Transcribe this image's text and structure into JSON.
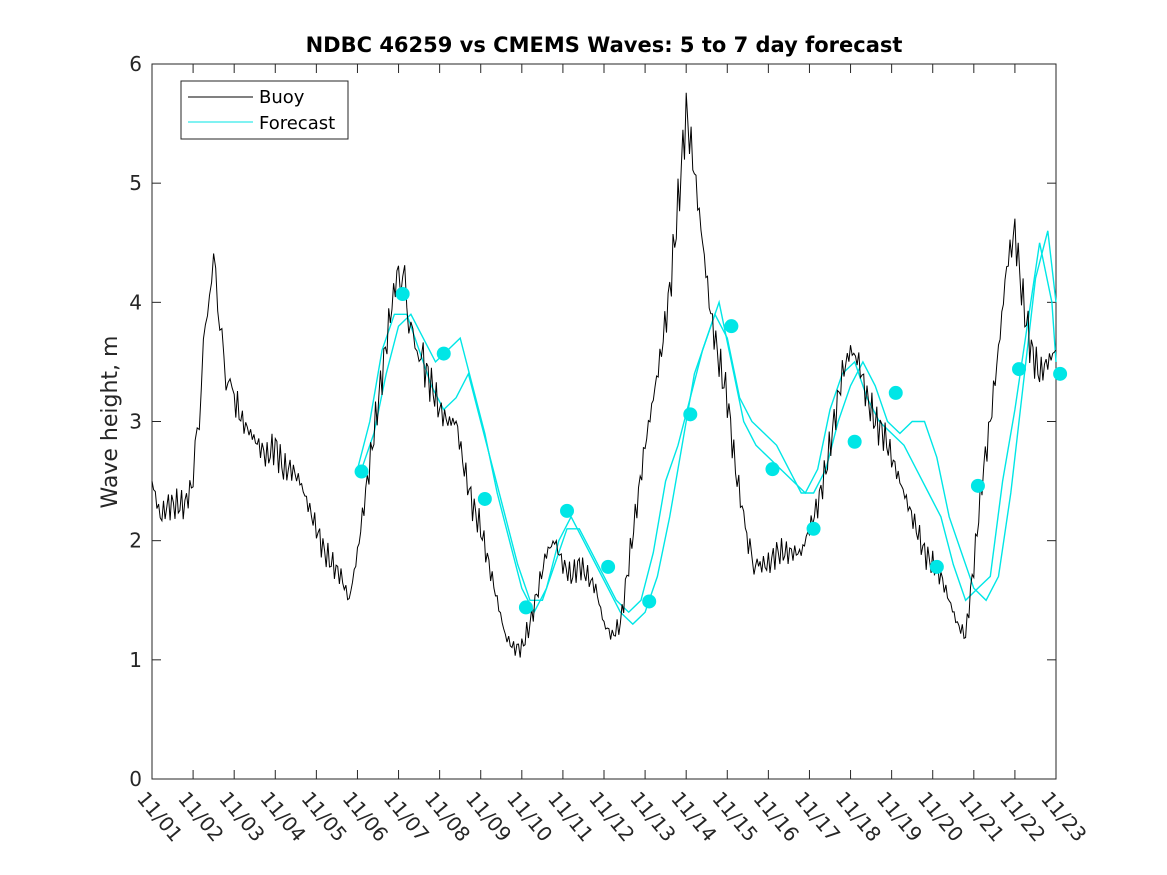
{
  "chart_data": {
    "type": "line",
    "title": "NDBC 46259 vs CMEMS Waves: 5 to 7 day forecast",
    "xlabel": "",
    "ylabel": "Wave height, m",
    "xlim": [
      0,
      22
    ],
    "ylim": [
      0,
      6
    ],
    "yticks": [
      0,
      1,
      2,
      3,
      4,
      5,
      6
    ],
    "xtick_labels": [
      "11/01",
      "11/02",
      "11/03",
      "11/04",
      "11/05",
      "11/06",
      "11/07",
      "11/08",
      "11/09",
      "11/10",
      "11/11",
      "11/12",
      "11/13",
      "11/14",
      "11/15",
      "11/16",
      "11/17",
      "11/18",
      "11/19",
      "11/20",
      "11/21",
      "11/22",
      "11/23"
    ],
    "legend": {
      "position": "top-left",
      "entries": [
        "Buoy",
        "Forecast"
      ]
    },
    "colors": {
      "buoy": "#000000",
      "forecast": "#00e6e6"
    },
    "buoy": {
      "name": "Buoy",
      "x": [
        0,
        0.2,
        0.4,
        0.6,
        0.8,
        1.0,
        1.1,
        1.2,
        1.3,
        1.4,
        1.5,
        1.6,
        1.7,
        1.8,
        1.9,
        2.0,
        2.2,
        2.4,
        2.6,
        2.8,
        3.0,
        3.2,
        3.4,
        3.6,
        3.8,
        4.0,
        4.2,
        4.4,
        4.6,
        4.8,
        5.0,
        5.2,
        5.4,
        5.6,
        5.8,
        6.0,
        6.1,
        6.2,
        6.3,
        6.4,
        6.5,
        6.6,
        6.8,
        7.0,
        7.2,
        7.4,
        7.6,
        7.8,
        8.0,
        8.2,
        8.4,
        8.6,
        8.8,
        9.0,
        9.2,
        9.4,
        9.6,
        9.8,
        10.0,
        10.2,
        10.4,
        10.6,
        10.8,
        11.0,
        11.2,
        11.4,
        11.6,
        11.8,
        12.0,
        12.2,
        12.4,
        12.6,
        12.8,
        13.0,
        13.2,
        13.4,
        13.6,
        13.8,
        14.0,
        14.2,
        14.4,
        14.55,
        14.65,
        14.8,
        15.0,
        15.2,
        15.4,
        15.6,
        15.8,
        16.0,
        16.2,
        16.4,
        16.6,
        16.8,
        17.0,
        17.2,
        17.4,
        17.6,
        17.8,
        18.0,
        18.2,
        18.4,
        18.6,
        18.8,
        19.0,
        19.2,
        19.4,
        19.6,
        19.8,
        20.0,
        20.2,
        20.4,
        20.6,
        20.8,
        21.0,
        21.2,
        21.4,
        21.6,
        21.8,
        22.0
      ],
      "y": [
        2.5,
        2.2,
        2.3,
        2.3,
        2.3,
        2.5,
        2.9,
        3.3,
        3.8,
        4.1,
        4.3,
        4.1,
        3.6,
        3.4,
        3.3,
        3.2,
        3.0,
        2.9,
        2.8,
        2.7,
        2.8,
        2.6,
        2.6,
        2.5,
        2.3,
        2.1,
        1.9,
        1.8,
        1.7,
        1.5,
        1.9,
        2.4,
        2.9,
        3.4,
        3.9,
        4.3,
        4.2,
        4.0,
        3.8,
        3.6,
        3.6,
        3.5,
        3.3,
        3.1,
        3.0,
        3.0,
        2.6,
        2.3,
        2.1,
        1.8,
        1.5,
        1.2,
        1.1,
        1.1,
        1.3,
        1.6,
        1.9,
        2.0,
        1.8,
        1.7,
        1.8,
        1.7,
        1.6,
        1.3,
        1.2,
        1.3,
        1.8,
        2.3,
        2.8,
        3.2,
        3.6,
        4.1,
        4.8,
        5.6,
        5.1,
        4.5,
        3.9,
        3.5,
        3.2,
        2.6,
        2.2,
        1.9,
        1.8,
        1.8,
        1.8,
        1.9,
        1.9,
        1.9,
        1.9,
        2.1,
        2.3,
        2.6,
        3.0,
        3.4,
        3.6,
        3.5,
        3.2,
        3.0,
        2.9,
        2.7,
        2.5,
        2.3,
        2.1,
        1.9,
        1.8,
        1.7,
        1.5,
        1.3,
        1.2,
        1.8,
        2.5,
        3.0,
        3.6,
        4.3,
        4.6,
        4.0,
        3.6,
        3.4,
        3.5,
        3.6
      ]
    },
    "forecast": [
      {
        "name": "Forecast",
        "x": [
          5.0,
          5.3,
          5.6,
          5.9,
          6.2,
          6.5,
          6.8,
          7.1,
          7.4,
          7.7,
          8.0,
          8.3,
          8.6,
          8.9,
          9.2,
          9.5,
          9.8,
          10.1,
          10.4,
          10.7,
          11.0,
          11.3,
          11.6,
          11.9,
          12.2,
          12.5,
          12.8,
          13.1,
          13.4,
          13.7,
          14.0,
          14.3,
          14.6,
          14.9,
          15.2,
          15.5,
          15.8,
          16.1,
          16.4,
          16.7,
          17.0,
          17.3,
          17.6,
          17.9,
          18.2,
          18.5,
          18.8,
          19.1,
          19.4,
          19.7,
          20.0,
          20.3,
          20.6,
          20.9,
          21.2,
          21.5,
          21.8,
          22.0
        ],
        "y": [
          2.6,
          3.0,
          3.6,
          3.9,
          3.9,
          3.6,
          3.3,
          3.1,
          3.2,
          3.4,
          3.0,
          2.6,
          2.2,
          1.8,
          1.5,
          1.5,
          1.8,
          2.1,
          2.1,
          1.9,
          1.7,
          1.5,
          1.4,
          1.5,
          1.9,
          2.5,
          2.8,
          3.2,
          3.6,
          3.9,
          3.7,
          3.2,
          3.0,
          2.9,
          2.8,
          2.6,
          2.4,
          2.4,
          2.6,
          3.0,
          3.3,
          3.5,
          3.3,
          3.0,
          2.9,
          3.0,
          3.0,
          2.7,
          2.2,
          1.9,
          1.6,
          1.5,
          1.7,
          2.4,
          3.3,
          4.2,
          4.6,
          4.0
        ]
      },
      {
        "name": "Forecast",
        "x": [
          5.1,
          5.4,
          5.7,
          6.0,
          6.3,
          6.6,
          6.9,
          7.2,
          7.5,
          7.8,
          8.1,
          8.4,
          8.7,
          9.0,
          9.3,
          9.6,
          9.9,
          10.2,
          10.5,
          10.8,
          11.1,
          11.4,
          11.7,
          12.0,
          12.3,
          12.6,
          12.9,
          13.2,
          13.5,
          13.8,
          14.1,
          14.4,
          14.7,
          15.0,
          15.3,
          15.6,
          15.9,
          16.2,
          16.5,
          16.8,
          17.1,
          17.4,
          17.7,
          18.0,
          18.3,
          18.6,
          18.9,
          19.2,
          19.5,
          19.8,
          20.1,
          20.4,
          20.7,
          21.0,
          21.3,
          21.6,
          21.9,
          22.0
        ],
        "y": [
          2.6,
          2.9,
          3.4,
          3.8,
          3.9,
          3.7,
          3.5,
          3.6,
          3.7,
          3.3,
          2.9,
          2.4,
          2.0,
          1.6,
          1.4,
          1.6,
          2.0,
          2.2,
          2.0,
          1.8,
          1.6,
          1.4,
          1.3,
          1.4,
          1.7,
          2.2,
          2.8,
          3.4,
          3.7,
          4.0,
          3.5,
          3.0,
          2.8,
          2.7,
          2.6,
          2.5,
          2.4,
          2.6,
          3.1,
          3.4,
          3.5,
          3.2,
          3.0,
          2.9,
          2.8,
          2.6,
          2.4,
          2.2,
          1.8,
          1.5,
          1.6,
          1.7,
          2.5,
          3.1,
          3.8,
          4.5,
          4.0,
          3.5
        ]
      }
    ],
    "markers": {
      "name": "Forecast",
      "x": [
        5.1,
        6.1,
        7.1,
        8.1,
        9.1,
        10.1,
        11.1,
        12.1,
        13.1,
        14.1,
        15.1,
        16.1,
        17.1,
        18.1,
        19.1,
        20.1,
        21.1,
        22.1
      ],
      "y": [
        2.58,
        4.07,
        3.57,
        2.35,
        1.44,
        2.25,
        1.78,
        1.49,
        3.06,
        3.8,
        2.6,
        2.1,
        2.83,
        3.24,
        1.78,
        2.46,
        3.44,
        3.4
      ]
    }
  }
}
